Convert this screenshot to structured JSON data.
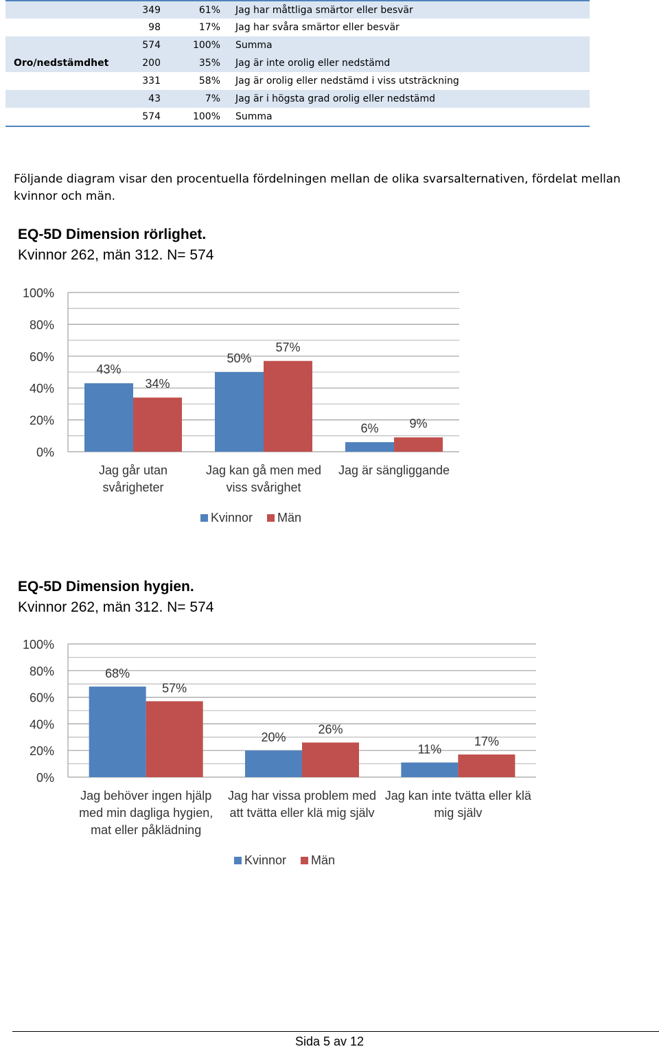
{
  "table": {
    "rows": [
      {
        "category": "",
        "n": "349",
        "pct": "61%",
        "text": "Jag har måttliga smärtor eller besvär",
        "shade": true,
        "topline": true
      },
      {
        "category": "",
        "n": "98",
        "pct": "17%",
        "text": "Jag har svåra smärtor eller besvär",
        "shade": false
      },
      {
        "category": "",
        "n": "574",
        "pct": "100%",
        "text": "Summa",
        "shade": true
      },
      {
        "category": "Oro/nedstämdhet",
        "n": "200",
        "pct": "35%",
        "text": "Jag är inte orolig eller nedstämd",
        "shade": true
      },
      {
        "category": "",
        "n": "331",
        "pct": "58%",
        "text": "Jag är orolig eller nedstämd i viss utsträckning",
        "shade": false
      },
      {
        "category": "",
        "n": "43",
        "pct": "7%",
        "text": "Jag är i högsta grad orolig eller nedstämd",
        "shade": true
      },
      {
        "category": "",
        "n": "574",
        "pct": "100%",
        "text": "Summa",
        "shade": false,
        "bottomline": true
      }
    ]
  },
  "paragraph": "Följande diagram visar den procentuella fördelningen mellan de olika svarsalternativen, fördelat mellan kvinnor och män.",
  "colors": {
    "kvinnor": "#4f81bd",
    "man": "#c0504d",
    "grid": "#a0a0a0",
    "table_shade": "#dbe5f1",
    "table_rule": "#4f81bd"
  },
  "chart_data": [
    {
      "type": "bar",
      "title": "EQ-5D Dimension rörlighet.",
      "subtitle": "Kvinnor 262, män 312. N= 574",
      "categories": [
        [
          "Jag går utan",
          "svårigheter"
        ],
        [
          "Jag kan gå men med",
          "viss svårighet"
        ],
        [
          "Jag är sängliggande"
        ]
      ],
      "series": [
        {
          "name": "Kvinnor",
          "values": [
            43,
            50,
            6
          ],
          "labels": [
            "43%",
            "50%",
            "6%"
          ]
        },
        {
          "name": "Män",
          "values": [
            34,
            57,
            9
          ],
          "labels": [
            "34%",
            "57%",
            "9%"
          ]
        }
      ],
      "ylim": [
        0,
        100
      ],
      "yticks": [
        "0%",
        "20%",
        "40%",
        "60%",
        "80%",
        "100%"
      ],
      "legend": "bottom"
    },
    {
      "type": "bar",
      "title": "EQ-5D Dimension hygien.",
      "subtitle": "Kvinnor 262, män 312. N= 574",
      "categories": [
        [
          "Jag behöver ingen hjälp",
          "med min dagliga hygien,",
          "mat eller påklädning"
        ],
        [
          "Jag har vissa problem med",
          "att tvätta eller klä mig själv"
        ],
        [
          "Jag kan inte tvätta eller klä",
          "mig själv"
        ]
      ],
      "series": [
        {
          "name": "Kvinnor",
          "values": [
            68,
            20,
            11
          ],
          "labels": [
            "68%",
            "20%",
            "11%"
          ]
        },
        {
          "name": "Män",
          "values": [
            57,
            26,
            17
          ],
          "labels": [
            "57%",
            "26%",
            "17%"
          ]
        }
      ],
      "ylim": [
        0,
        100
      ],
      "yticks": [
        "0%",
        "20%",
        "40%",
        "60%",
        "80%",
        "100%"
      ],
      "legend": "bottom"
    }
  ],
  "footer": "Sida 5 av 12"
}
